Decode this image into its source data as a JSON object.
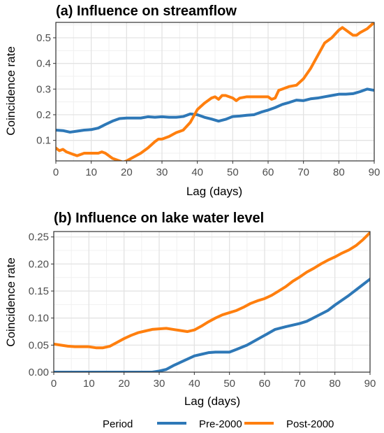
{
  "legend": {
    "title": "Period",
    "items": [
      {
        "label": "Pre-2000",
        "color": "#2e78b7"
      },
      {
        "label": "Post-2000",
        "color": "#ff7f0e"
      }
    ]
  },
  "chart_data": [
    {
      "type": "line",
      "title": "(a) Influence on streamflow",
      "xlabel": "Lag (days)",
      "ylabel": "Coincidence rate",
      "xlim": [
        0,
        90
      ],
      "ylim": [
        0.02,
        0.56
      ],
      "grid": true,
      "x_ticks": [
        0,
        10,
        20,
        30,
        40,
        50,
        60,
        70,
        80,
        90
      ],
      "y_ticks": [
        0.1,
        0.2,
        0.3,
        0.4,
        0.5
      ],
      "series": [
        {
          "name": "Pre-2000",
          "color": "#2e78b7",
          "x": [
            0,
            2,
            4,
            6,
            8,
            10,
            12,
            14,
            16,
            18,
            20,
            22,
            24,
            26,
            28,
            30,
            32,
            34,
            36,
            38,
            40,
            42,
            44,
            46,
            48,
            50,
            52,
            54,
            56,
            58,
            60,
            62,
            64,
            66,
            68,
            70,
            72,
            74,
            76,
            78,
            80,
            82,
            84,
            86,
            88,
            90
          ],
          "y": [
            0.14,
            0.138,
            0.132,
            0.136,
            0.14,
            0.142,
            0.148,
            0.162,
            0.175,
            0.185,
            0.187,
            0.187,
            0.187,
            0.192,
            0.19,
            0.192,
            0.19,
            0.19,
            0.193,
            0.203,
            0.2,
            0.19,
            0.183,
            0.175,
            0.182,
            0.193,
            0.195,
            0.198,
            0.2,
            0.21,
            0.218,
            0.228,
            0.24,
            0.248,
            0.257,
            0.255,
            0.262,
            0.265,
            0.27,
            0.275,
            0.28,
            0.28,
            0.282,
            0.29,
            0.3,
            0.295
          ]
        },
        {
          "name": "Post-2000",
          "color": "#ff7f0e",
          "x": [
            0,
            1,
            2,
            3,
            4,
            5,
            6,
            7,
            8,
            10,
            12,
            13,
            14,
            16,
            18,
            19,
            20,
            22,
            24,
            26,
            28,
            29,
            30,
            32,
            34,
            35,
            36,
            38,
            40,
            42,
            44,
            45,
            46,
            47,
            48,
            50,
            51,
            52,
            54,
            56,
            58,
            60,
            61,
            62,
            63,
            64,
            66,
            68,
            70,
            72,
            74,
            76,
            78,
            80,
            81,
            82,
            84,
            85,
            86,
            88,
            90
          ],
          "y": [
            0.07,
            0.06,
            0.065,
            0.055,
            0.05,
            0.045,
            0.04,
            0.045,
            0.05,
            0.05,
            0.05,
            0.055,
            0.05,
            0.03,
            0.02,
            0.015,
            0.02,
            0.035,
            0.05,
            0.07,
            0.095,
            0.105,
            0.105,
            0.115,
            0.13,
            0.135,
            0.14,
            0.17,
            0.22,
            0.245,
            0.265,
            0.27,
            0.26,
            0.275,
            0.275,
            0.265,
            0.255,
            0.265,
            0.27,
            0.27,
            0.27,
            0.27,
            0.26,
            0.265,
            0.295,
            0.3,
            0.31,
            0.315,
            0.34,
            0.38,
            0.43,
            0.48,
            0.5,
            0.53,
            0.54,
            0.53,
            0.51,
            0.51,
            0.52,
            0.535,
            0.56
          ]
        }
      ]
    },
    {
      "type": "line",
      "title": "(b) Influence on lake water level",
      "xlabel": "Lag (days)",
      "ylabel": "Coincidence rate",
      "xlim": [
        0,
        90
      ],
      "ylim": [
        0,
        0.26
      ],
      "grid": true,
      "x_ticks": [
        0,
        10,
        20,
        30,
        40,
        50,
        60,
        70,
        80,
        90
      ],
      "y_ticks": [
        0.0,
        0.05,
        0.1,
        0.15,
        0.2,
        0.25
      ],
      "y_tick_labels": [
        "0.00",
        "0.05",
        "0.10",
        "0.15",
        "0.20",
        "0.25"
      ],
      "series": [
        {
          "name": "Pre-2000",
          "color": "#2e78b7",
          "x": [
            0,
            5,
            10,
            15,
            20,
            25,
            28,
            30,
            32,
            34,
            36,
            38,
            40,
            42,
            44,
            46,
            48,
            50,
            52,
            55,
            60,
            63,
            66,
            70,
            72,
            75,
            78,
            80,
            84,
            88,
            90
          ],
          "y": [
            0,
            0,
            0,
            0,
            0,
            0,
            0,
            0.002,
            0.005,
            0.012,
            0.018,
            0.024,
            0.03,
            0.033,
            0.036,
            0.037,
            0.037,
            0.037,
            0.042,
            0.05,
            0.068,
            0.079,
            0.084,
            0.09,
            0.094,
            0.104,
            0.114,
            0.124,
            0.142,
            0.162,
            0.172
          ]
        },
        {
          "name": "Post-2000",
          "color": "#ff7f0e",
          "x": [
            0,
            2,
            4,
            6,
            8,
            10,
            12,
            14,
            16,
            18,
            20,
            22,
            24,
            26,
            28,
            30,
            32,
            34,
            36,
            38,
            40,
            42,
            44,
            46,
            48,
            50,
            52,
            54,
            56,
            58,
            60,
            62,
            64,
            66,
            68,
            70,
            72,
            74,
            76,
            78,
            80,
            82,
            84,
            86,
            88,
            90
          ],
          "y": [
            0.052,
            0.05,
            0.048,
            0.047,
            0.047,
            0.047,
            0.045,
            0.045,
            0.048,
            0.055,
            0.062,
            0.068,
            0.073,
            0.076,
            0.079,
            0.08,
            0.081,
            0.079,
            0.077,
            0.075,
            0.078,
            0.085,
            0.093,
            0.1,
            0.106,
            0.11,
            0.114,
            0.12,
            0.127,
            0.132,
            0.136,
            0.142,
            0.15,
            0.158,
            0.168,
            0.176,
            0.185,
            0.192,
            0.2,
            0.207,
            0.213,
            0.22,
            0.226,
            0.234,
            0.245,
            0.258
          ]
        }
      ]
    }
  ]
}
